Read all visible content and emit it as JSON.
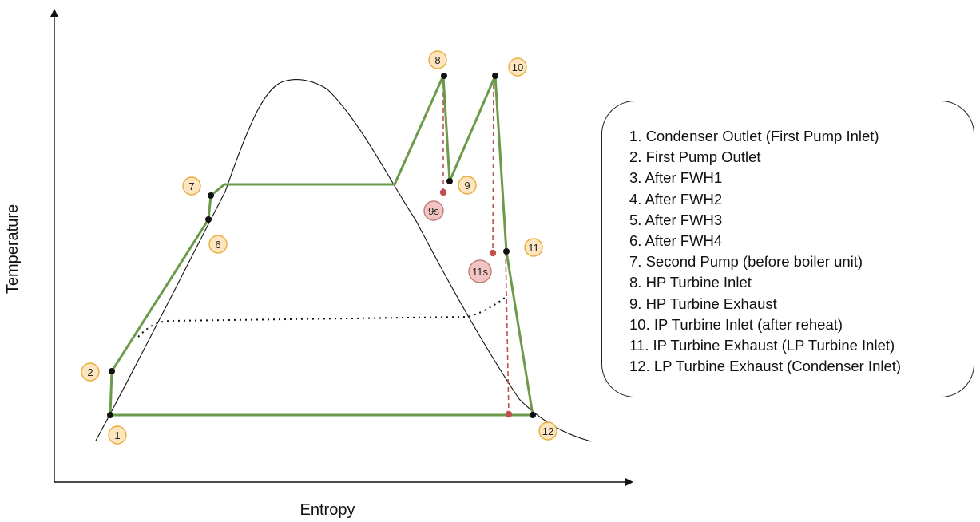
{
  "axes": {
    "x_label": "Entropy",
    "y_label": "Temperature"
  },
  "states": [
    {
      "id": "1",
      "label": "1"
    },
    {
      "id": "2",
      "label": "2"
    },
    {
      "id": "6",
      "label": "6"
    },
    {
      "id": "7",
      "label": "7"
    },
    {
      "id": "8",
      "label": "8"
    },
    {
      "id": "9",
      "label": "9"
    },
    {
      "id": "10",
      "label": "10"
    },
    {
      "id": "11",
      "label": "11"
    },
    {
      "id": "12",
      "label": "12"
    }
  ],
  "isentropic_states": [
    {
      "id": "9s",
      "label": "9s"
    },
    {
      "id": "11s",
      "label": "11s"
    }
  ],
  "colors": {
    "cycle": "#6a9a4a",
    "state_marker_fill": "#fde6bf",
    "state_marker_stroke": "#e8ad3c",
    "isentropic_line": "#c0504d",
    "isentropic_marker_fill": "#f3c4c4",
    "isentropic_marker_stroke": "#c27b7b"
  },
  "legend": {
    "items": [
      "1. Condenser Outlet (First Pump Inlet)",
      "2. First Pump Outlet",
      "3. After FWH1",
      "4. After FWH2",
      "5. After FWH3",
      "6. After FWH4",
      "7. Second Pump (before boiler unit)",
      "8. HP Turbine Inlet",
      "9. HP Turbine Exhaust",
      "10. IP Turbine Inlet (after reheat)",
      "11. IP Turbine Exhaust (LP Turbine Inlet)",
      "12. LP Turbine Exhaust (Condenser Inlet)"
    ]
  }
}
